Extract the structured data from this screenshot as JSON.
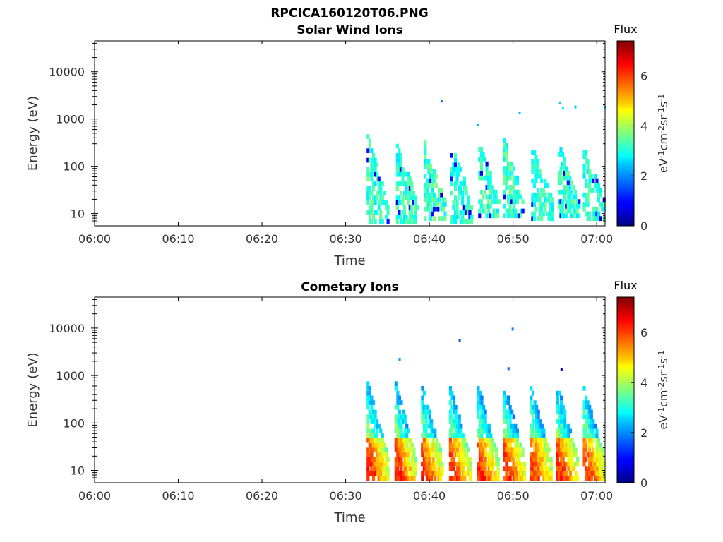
{
  "figure": {
    "file_title": "RPCICA160120T06.PNG"
  },
  "chart_data": [
    {
      "type": "heatmap",
      "title": "Solar Wind Ions",
      "xlabel": "Time",
      "ylabel": "Energy (eV)",
      "x_range": [
        "06:00",
        "07:01"
      ],
      "x_ticks": [
        "06:00",
        "06:10",
        "06:20",
        "06:30",
        "06:40",
        "06:50",
        "07:00"
      ],
      "y_scale": "log",
      "y_range": [
        5.5,
        45000
      ],
      "y_ticks": [
        10,
        100,
        1000,
        10000
      ],
      "y_tick_labels": [
        "10",
        "100",
        "1000",
        "10000"
      ],
      "colorbar": {
        "label": "Flux",
        "unit_base": "eV",
        "unit_sup": [
          "-1",
          "-2",
          "-1",
          "-1"
        ],
        "unit_parts": [
          "cm",
          "sr",
          "s"
        ],
        "range": [
          0,
          7.4
        ],
        "ticks": [
          0,
          2,
          4,
          6
        ],
        "tick_labels": [
          "0",
          "2",
          "4",
          "6"
        ],
        "colormap": "jet"
      },
      "bursts": [
        {
          "t": "06:32:30",
          "emax": 420,
          "emin": 6,
          "peak": 3.5
        },
        {
          "t": "06:36:00",
          "emax": 290,
          "emin": 6,
          "peak": 3.4
        },
        {
          "t": "06:39:20",
          "emax": 280,
          "emin": 7,
          "peak": 3.6
        },
        {
          "t": "06:42:30",
          "emax": 320,
          "emin": 6,
          "peak": 3.4
        },
        {
          "t": "06:45:50",
          "emax": 300,
          "emin": 8,
          "peak": 3.5
        },
        {
          "t": "06:48:50",
          "emax": 330,
          "emin": 8,
          "peak": 3.6
        },
        {
          "t": "06:52:10",
          "emax": 280,
          "emin": 7,
          "peak": 3.4
        },
        {
          "t": "06:55:20",
          "emax": 270,
          "emin": 8,
          "peak": 3.5
        },
        {
          "t": "06:58:20",
          "emax": 230,
          "emin": 7,
          "peak": 3.4
        }
      ],
      "isolated_points": [
        {
          "t": "06:41:20",
          "e": 2400,
          "v": 1.8
        },
        {
          "t": "06:45:40",
          "e": 750,
          "v": 2.2
        },
        {
          "t": "06:50:40",
          "e": 1350,
          "v": 2.3
        },
        {
          "t": "06:55:30",
          "e": 2200,
          "v": 2.4
        },
        {
          "t": "06:55:50",
          "e": 1700,
          "v": 2.6
        },
        {
          "t": "06:57:20",
          "e": 1800,
          "v": 2.4
        },
        {
          "t": "07:00:50",
          "e": 1800,
          "v": 2.5
        }
      ]
    },
    {
      "type": "heatmap",
      "title": "Cometary Ions",
      "xlabel": "Time",
      "ylabel": "Energy (eV)",
      "x_range": [
        "06:00",
        "07:01"
      ],
      "x_ticks": [
        "06:00",
        "06:10",
        "06:20",
        "06:30",
        "06:40",
        "06:50",
        "07:00"
      ],
      "y_scale": "log",
      "y_range": [
        5.5,
        45000
      ],
      "y_ticks": [
        10,
        100,
        1000,
        10000
      ],
      "y_tick_labels": [
        "10",
        "100",
        "1000",
        "10000"
      ],
      "colorbar": {
        "label": "Flux",
        "unit_base": "eV",
        "unit_sup": [
          "-1",
          "-2",
          "-1",
          "-1"
        ],
        "unit_parts": [
          "cm",
          "sr",
          "s"
        ],
        "range": [
          0,
          7.4
        ],
        "ticks": [
          0,
          2,
          4,
          6
        ],
        "tick_labels": [
          "0",
          "2",
          "4",
          "6"
        ],
        "colormap": "jet"
      },
      "bursts": [
        {
          "t": "06:32:30",
          "emax": 700,
          "emin": 6,
          "peak": 6.6
        },
        {
          "t": "06:35:50",
          "emax": 650,
          "emin": 6,
          "peak": 6.5
        },
        {
          "t": "06:39:00",
          "emax": 580,
          "emin": 6,
          "peak": 6.6
        },
        {
          "t": "06:42:20",
          "emax": 600,
          "emin": 6,
          "peak": 6.4
        },
        {
          "t": "06:45:40",
          "emax": 580,
          "emin": 6,
          "peak": 6.6
        },
        {
          "t": "06:48:50",
          "emax": 600,
          "emin": 6,
          "peak": 6.5
        },
        {
          "t": "06:52:00",
          "emax": 560,
          "emin": 6,
          "peak": 6.4
        },
        {
          "t": "06:55:10",
          "emax": 580,
          "emin": 6,
          "peak": 6.5
        },
        {
          "t": "06:58:20",
          "emax": 560,
          "emin": 6,
          "peak": 6.3
        }
      ],
      "isolated_points": [
        {
          "t": "06:36:20",
          "e": 2200,
          "v": 2.0
        },
        {
          "t": "06:43:30",
          "e": 5500,
          "v": 1.5
        },
        {
          "t": "06:49:50",
          "e": 9500,
          "v": 1.8
        },
        {
          "t": "06:49:20",
          "e": 1400,
          "v": 1.6
        },
        {
          "t": "06:55:40",
          "e": 1350,
          "v": 0.4
        }
      ]
    }
  ]
}
